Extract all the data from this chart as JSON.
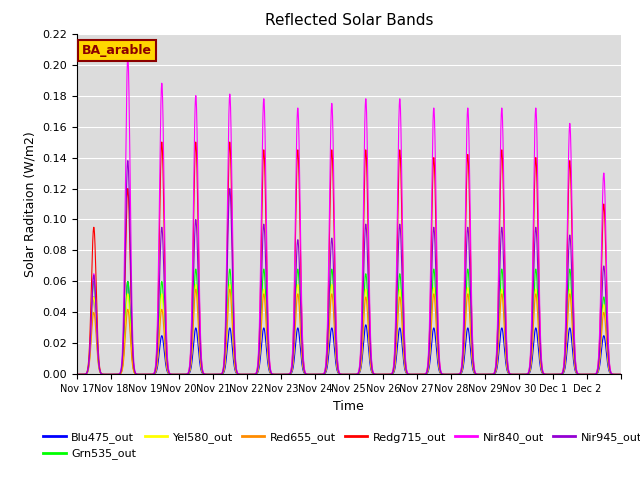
{
  "title": "Reflected Solar Bands",
  "xlabel": "Time",
  "ylabel": "Solar Raditaion (W/m2)",
  "ylim": [
    0,
    0.22
  ],
  "yticks": [
    0.0,
    0.02,
    0.04,
    0.06,
    0.08,
    0.1,
    0.12,
    0.14,
    0.16,
    0.18,
    0.2,
    0.22
  ],
  "annotation_text": "BA_arable",
  "annotation_color": "#8B0000",
  "annotation_bg": "#FFD700",
  "background_color": "#DCDCDC",
  "series": [
    {
      "name": "Blu475_out",
      "color": "#0000FF"
    },
    {
      "name": "Grn535_out",
      "color": "#00FF00"
    },
    {
      "name": "Yel580_out",
      "color": "#FFFF00"
    },
    {
      "name": "Red655_out",
      "color": "#FF8C00"
    },
    {
      "name": "Redg715_out",
      "color": "#FF0000"
    },
    {
      "name": "Nir840_out",
      "color": "#FF00FF"
    },
    {
      "name": "Nir945_out",
      "color": "#9400D3"
    }
  ],
  "day_peaks": [
    [
      0.05,
      0.06,
      0.05,
      0.04,
      0.095,
      0.065,
      0.064
    ],
    [
      0.06,
      0.06,
      0.052,
      0.042,
      0.12,
      0.205,
      0.138
    ],
    [
      0.025,
      0.06,
      0.052,
      0.042,
      0.15,
      0.188,
      0.095
    ],
    [
      0.03,
      0.068,
      0.058,
      0.055,
      0.15,
      0.18,
      0.1
    ],
    [
      0.03,
      0.068,
      0.058,
      0.055,
      0.15,
      0.181,
      0.12
    ],
    [
      0.03,
      0.068,
      0.055,
      0.052,
      0.145,
      0.178,
      0.097
    ],
    [
      0.03,
      0.068,
      0.058,
      0.052,
      0.145,
      0.172,
      0.087
    ],
    [
      0.03,
      0.068,
      0.058,
      0.052,
      0.145,
      0.175,
      0.088
    ],
    [
      0.032,
      0.065,
      0.055,
      0.05,
      0.145,
      0.178,
      0.097
    ],
    [
      0.03,
      0.065,
      0.055,
      0.05,
      0.145,
      0.178,
      0.097
    ],
    [
      0.03,
      0.068,
      0.056,
      0.052,
      0.14,
      0.172,
      0.095
    ],
    [
      0.03,
      0.068,
      0.056,
      0.052,
      0.142,
      0.172,
      0.095
    ],
    [
      0.03,
      0.068,
      0.055,
      0.052,
      0.145,
      0.172,
      0.095
    ],
    [
      0.03,
      0.068,
      0.055,
      0.052,
      0.14,
      0.172,
      0.095
    ],
    [
      0.03,
      0.068,
      0.055,
      0.052,
      0.138,
      0.162,
      0.09
    ],
    [
      0.025,
      0.05,
      0.045,
      0.04,
      0.11,
      0.13,
      0.07
    ]
  ],
  "xtick_labels": [
    "Nov 17",
    "Nov 18",
    "Nov 19",
    "Nov 20",
    "Nov 21",
    "Nov 22",
    "Nov 23",
    "Nov 24",
    "Nov 25",
    "Nov 26",
    "Nov 27",
    "Nov 28",
    "Nov 29",
    "Nov 30",
    "Dec 1",
    "Dec 2"
  ],
  "line_width": 0.8,
  "figsize": [
    6.4,
    4.8
  ],
  "dpi": 100,
  "sigma": 0.07
}
